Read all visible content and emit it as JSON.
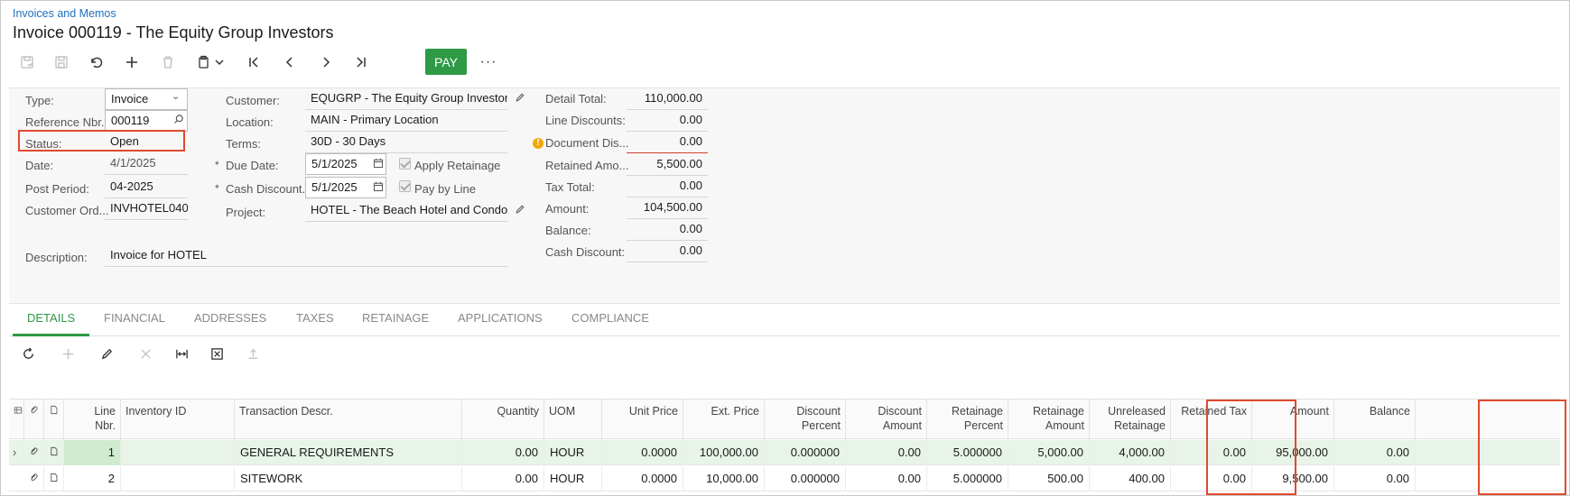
{
  "header": {
    "breadcrumb": "Invoices and Memos",
    "title": "Invoice 000119 - The Equity Group Investors"
  },
  "toolbar": {
    "pay_label": "PAY",
    "more_label": "···"
  },
  "form": {
    "type_label": "Type:",
    "type_value": "Invoice",
    "refnbr_label": "Reference Nbr.:",
    "refnbr_value": "000119",
    "status_label": "Status:",
    "status_value": "Open",
    "date_label": "Date:",
    "date_value": "4/1/2025",
    "postperiod_label": "Post Period:",
    "postperiod_value": "04-2025",
    "custord_label": "Customer Ord...",
    "custord_value": "INVHOTEL040",
    "description_label": "Description:",
    "description_value": "Invoice for HOTEL",
    "customer_label": "Customer:",
    "customer_value": "EQUGRP - The Equity Group Investors",
    "location_label": "Location:",
    "location_value": "MAIN - Primary Location",
    "terms_label": "Terms:",
    "terms_value": "30D - 30 Days",
    "duedate_label": "Due Date:",
    "duedate_value": "5/1/2025",
    "cashdisc_label": "Cash Discount...",
    "cashdisc_value": "5/1/2025",
    "project_label": "Project:",
    "project_value": "HOTEL - The Beach Hotel and Condominiums",
    "apply_retainage_label": "Apply Retainage",
    "pay_by_line_label": "Pay by Line",
    "detail_total_label": "Detail Total:",
    "detail_total_value": "110,000.00",
    "line_discounts_label": "Line Discounts:",
    "line_discounts_value": "0.00",
    "document_dis_label": "Document Dis...",
    "document_dis_value": "0.00",
    "retained_amo_label": "Retained Amo...",
    "retained_amo_value": "5,500.00",
    "tax_total_label": "Tax Total:",
    "tax_total_value": "0.00",
    "amount_label": "Amount:",
    "amount_value": "104,500.00",
    "balance_label": "Balance:",
    "balance_value": "0.00",
    "cash_discount_label": "Cash Discount:",
    "cash_discount_value": "0.00"
  },
  "tabs": [
    "DETAILS",
    "FINANCIAL",
    "ADDRESSES",
    "TAXES",
    "RETAINAGE",
    "APPLICATIONS",
    "COMPLIANCE"
  ],
  "grid": {
    "headers": {
      "line_nbr": "Line\nNbr.",
      "inventory_id": "Inventory ID",
      "trans_descr": "Transaction Descr.",
      "quantity": "Quantity",
      "uom": "UOM",
      "unit_price": "Unit Price",
      "ext_price": "Ext. Price",
      "discount_percent": "Discount\nPercent",
      "discount_amount": "Discount\nAmount",
      "retainage_percent": "Retainage\nPercent",
      "retainage_amount": "Retainage\nAmount",
      "unreleased_retainage": "Unreleased\nRetainage",
      "retained_tax": "Retained Tax",
      "amount": "Amount",
      "balance": "Balance"
    },
    "rows": [
      {
        "line_nbr": "1",
        "inventory_id": "",
        "trans_descr": "GENERAL REQUIREMENTS",
        "quantity": "0.00",
        "uom": "HOUR",
        "unit_price": "0.0000",
        "ext_price": "100,000.00",
        "discount_percent": "0.000000",
        "discount_amount": "0.00",
        "retainage_percent": "5.000000",
        "retainage_amount": "5,000.00",
        "unreleased_retainage": "4,000.00",
        "retained_tax": "0.00",
        "amount": "95,000.00",
        "balance": "0.00"
      },
      {
        "line_nbr": "2",
        "inventory_id": "",
        "trans_descr": "SITEWORK",
        "quantity": "0.00",
        "uom": "HOUR",
        "unit_price": "0.0000",
        "ext_price": "10,000.00",
        "discount_percent": "0.000000",
        "discount_amount": "0.00",
        "retainage_percent": "5.000000",
        "retainage_amount": "500.00",
        "unreleased_retainage": "400.00",
        "retained_tax": "0.00",
        "amount": "9,500.00",
        "balance": "0.00"
      }
    ]
  }
}
